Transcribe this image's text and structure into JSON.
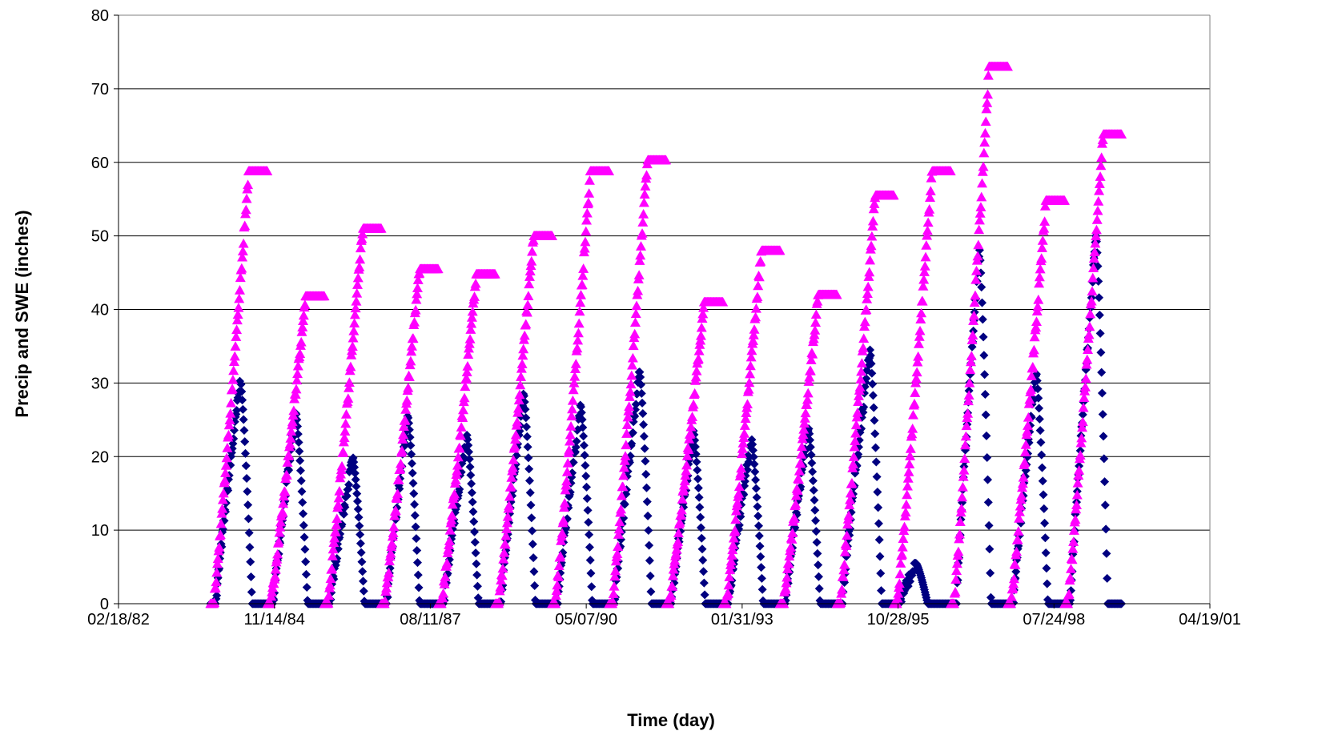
{
  "chart_data": {
    "type": "scatter",
    "title": "",
    "xlabel": "Time (day)",
    "ylabel": "Precip and SWE (inches)",
    "x_tick_labels": [
      "02/18/82",
      "11/14/84",
      "08/11/87",
      "05/07/90",
      "01/31/93",
      "10/28/95",
      "07/24/98",
      "04/19/01"
    ],
    "x_ticks": [
      "1982-02-18",
      "1984-11-14",
      "1987-08-11",
      "1990-05-07",
      "1993-01-31",
      "1995-10-28",
      "1998-07-24",
      "2001-04-19"
    ],
    "xlim": [
      "1982-02-18",
      "2001-04-19"
    ],
    "ylim": [
      0,
      80
    ],
    "y_ticks": [
      0,
      10,
      20,
      30,
      40,
      50,
      60,
      70,
      80
    ],
    "grid": "horizontal",
    "legend": "none",
    "colors": {
      "swe": "#000080",
      "precip": "#FF00FF",
      "grid": "#000000",
      "axis": "#808080"
    },
    "water_years": [
      {
        "start": "1983-10-01",
        "end": "1984-09-30",
        "precip_max": 58.8,
        "swe_peak": 30.5,
        "swe_peak_date": "1984-04-10"
      },
      {
        "start": "1984-10-01",
        "end": "1985-09-30",
        "precip_max": 41.8,
        "swe_peak": 26.0,
        "swe_peak_date": "1985-04-01"
      },
      {
        "start": "1985-10-01",
        "end": "1986-09-30",
        "precip_max": 51.0,
        "swe_peak": 20.0,
        "swe_peak_date": "1986-04-01"
      },
      {
        "start": "1986-10-01",
        "end": "1987-09-30",
        "precip_max": 45.5,
        "swe_peak": 25.5,
        "swe_peak_date": "1987-03-20"
      },
      {
        "start": "1987-10-01",
        "end": "1988-09-30",
        "precip_max": 44.8,
        "swe_peak": 23.0,
        "swe_peak_date": "1988-04-01"
      },
      {
        "start": "1988-10-01",
        "end": "1989-09-30",
        "precip_max": 50.0,
        "swe_peak": 28.5,
        "swe_peak_date": "1989-04-01"
      },
      {
        "start": "1989-10-01",
        "end": "1990-09-30",
        "precip_max": 58.8,
        "swe_peak": 27.0,
        "swe_peak_date": "1990-04-01"
      },
      {
        "start": "1990-10-01",
        "end": "1991-09-30",
        "precip_max": 60.3,
        "swe_peak": 31.5,
        "swe_peak_date": "1991-04-15"
      },
      {
        "start": "1991-10-01",
        "end": "1992-09-30",
        "precip_max": 41.0,
        "swe_peak": 23.5,
        "swe_peak_date": "1992-03-25"
      },
      {
        "start": "1992-10-01",
        "end": "1993-09-30",
        "precip_max": 48.0,
        "swe_peak": 22.5,
        "swe_peak_date": "1993-04-01"
      },
      {
        "start": "1993-10-01",
        "end": "1994-09-30",
        "precip_max": 42.0,
        "swe_peak": 24.0,
        "swe_peak_date": "1994-04-01"
      },
      {
        "start": "1994-10-01",
        "end": "1995-09-30",
        "precip_max": 55.5,
        "swe_peak": 34.5,
        "swe_peak_date": "1995-05-01"
      },
      {
        "start": "1995-10-01",
        "end": "1996-09-30",
        "precip_max": 58.8,
        "swe_peak": 5.5,
        "swe_peak_date": "1996-02-20"
      },
      {
        "start": "1996-10-01",
        "end": "1997-09-30",
        "precip_max": 73.0,
        "swe_peak": 48.5,
        "swe_peak_date": "1997-04-01"
      },
      {
        "start": "1997-10-01",
        "end": "1998-09-30",
        "precip_max": 54.8,
        "swe_peak": 31.5,
        "swe_peak_date": "1998-04-01"
      },
      {
        "start": "1998-10-01",
        "end": "1999-09-30",
        "precip_max": 63.8,
        "swe_peak": 50.0,
        "swe_peak_date": "1999-04-20"
      }
    ]
  }
}
